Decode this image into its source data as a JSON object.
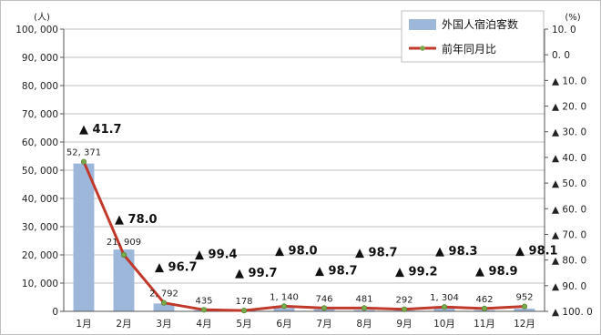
{
  "chart_data": {
    "type": "bar",
    "categories": [
      "1月",
      "2月",
      "3月",
      "4月",
      "5月",
      "6月",
      "7月",
      "8月",
      "9月",
      "10月",
      "11月",
      "12月"
    ],
    "series": [
      {
        "name": "外国人宿泊客数",
        "type": "bar",
        "axis": "left",
        "color": "#9db7da",
        "values": [
          52371,
          21909,
          2792,
          435,
          178,
          1140,
          746,
          481,
          292,
          1304,
          462,
          952
        ],
        "labels": [
          "52, 371",
          "21, 909",
          "2, 792",
          "435",
          "178",
          "1, 140",
          "746",
          "481",
          "292",
          "1, 304",
          "462",
          "952"
        ]
      },
      {
        "name": "前年同月比",
        "type": "line",
        "axis": "right",
        "color": "#c0392b",
        "marker_color": "#7aa84a",
        "values": [
          -41.7,
          -78.0,
          -96.7,
          -99.4,
          -99.7,
          -98.0,
          -98.7,
          -98.7,
          -99.2,
          -98.3,
          -98.9,
          -98.1
        ],
        "labels": [
          "▲ 41.7",
          "▲ 78.0",
          "▲ 96.7",
          "▲ 99.4",
          "▲ 99.7",
          "▲ 98.0",
          "▲ 98.7",
          "▲ 98.7",
          "▲ 99.2",
          "▲ 98.3",
          "▲ 98.9",
          "▲ 98.1"
        ]
      }
    ],
    "y_left": {
      "unit": "(人)",
      "range": [
        0,
        100000
      ],
      "ticks": [
        0,
        10000,
        20000,
        30000,
        40000,
        50000,
        60000,
        70000,
        80000,
        90000,
        100000
      ],
      "tick_labels": [
        "0",
        "10, 000",
        "20, 000",
        "30, 000",
        "40, 000",
        "50, 000",
        "60, 000",
        "70, 000",
        "80, 000",
        "90, 000",
        "100, 000"
      ]
    },
    "y_right": {
      "unit": "(%)",
      "range": [
        -100,
        10
      ],
      "ticks": [
        10,
        0,
        -10,
        -20,
        -30,
        -40,
        -50,
        -60,
        -70,
        -80,
        -90,
        -100
      ],
      "tick_labels": [
        "10. 0",
        "0. 0",
        "▲ 10. 0",
        "▲ 20. 0",
        "▲ 30. 0",
        "▲ 40. 0",
        "▲ 50. 0",
        "▲ 60. 0",
        "▲ 70. 0",
        "▲ 80. 0",
        "▲ 90. 0",
        "▲ 100. 0"
      ]
    },
    "grid": true,
    "legend": "top-right"
  }
}
